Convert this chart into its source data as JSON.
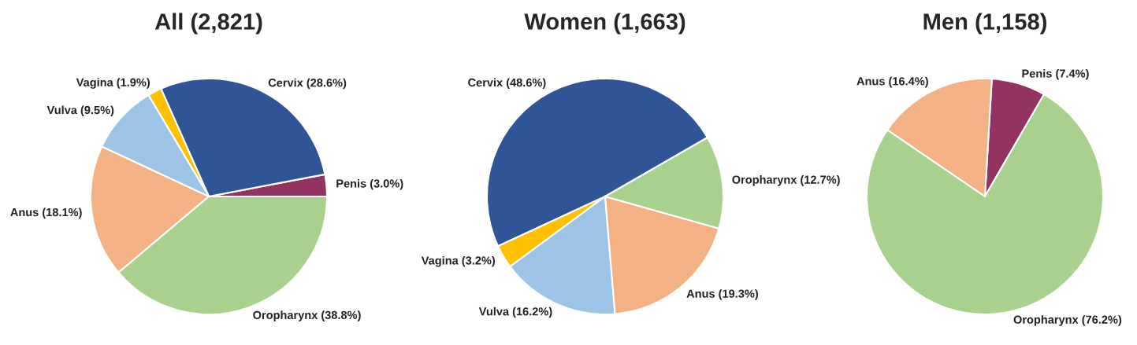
{
  "chart_data": [
    {
      "type": "pie",
      "title": "All (2,821)",
      "categories": [
        "Penis",
        "Cervix",
        "Vagina",
        "Vulva",
        "Anus",
        "Oropharynx"
      ],
      "values": [
        3.0,
        28.6,
        1.9,
        9.5,
        18.1,
        38.8
      ],
      "value_labels": [
        "(3.0%)",
        "(28.6%)",
        "(1.9%)",
        "(9.5%)",
        "(18.1%)",
        "(38.8%)"
      ],
      "colors": [
        "#933364",
        "#2f5597",
        "#ffc000",
        "#9dc3e6",
        "#f4b183",
        "#a9d18e"
      ]
    },
    {
      "type": "pie",
      "title": "Women (1,663)",
      "categories": [
        "Cervix",
        "Vagina",
        "Vulva",
        "Anus",
        "Oropharynx"
      ],
      "values": [
        48.6,
        3.2,
        16.2,
        19.3,
        12.7
      ],
      "value_labels": [
        "(48.6%)",
        "(3.2%)",
        "(16.2%)",
        "(19.3%)",
        "(12.7%)"
      ],
      "colors": [
        "#2f5597",
        "#ffc000",
        "#9dc3e6",
        "#f4b183",
        "#a9d18e"
      ]
    },
    {
      "type": "pie",
      "title": "Men (1,158)",
      "categories": [
        "Penis",
        "Anus",
        "Oropharynx"
      ],
      "values": [
        7.4,
        16.4,
        76.2
      ],
      "value_labels": [
        "(7.4%)",
        "(16.4%)",
        "(76.2%)"
      ],
      "colors": [
        "#933364",
        "#f4b183",
        "#a9d18e"
      ]
    }
  ]
}
